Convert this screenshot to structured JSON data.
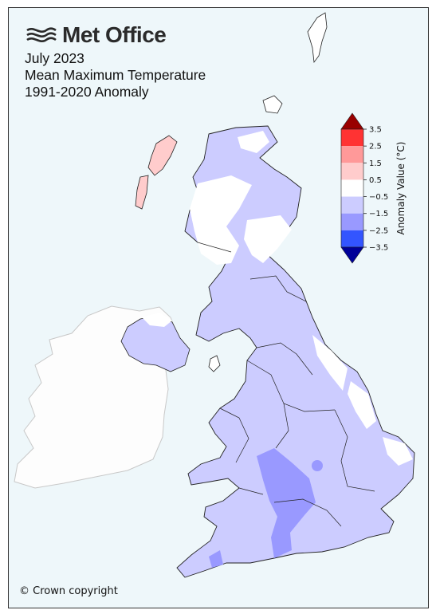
{
  "brand": {
    "name": "Met Office",
    "logo_icon": "met-office-waves-icon"
  },
  "title": {
    "line1": "July 2023",
    "line2": "Mean Maximum Temperature",
    "line3": "1991-2020 Anomaly"
  },
  "colorbar": {
    "label": "Anomaly Value (°C)",
    "ticks": [
      "3.5",
      "2.5",
      "1.5",
      "0.5",
      "−0.5",
      "−1.5",
      "−2.5",
      "−3.5"
    ],
    "colors": [
      "#ff3333",
      "#ff9999",
      "#ffcccc",
      "#ffffff",
      "#ccccff",
      "#9999ff",
      "#3355ff"
    ],
    "over_color": "#990000",
    "under_color": "#000099"
  },
  "copyright": "© Crown copyright"
}
